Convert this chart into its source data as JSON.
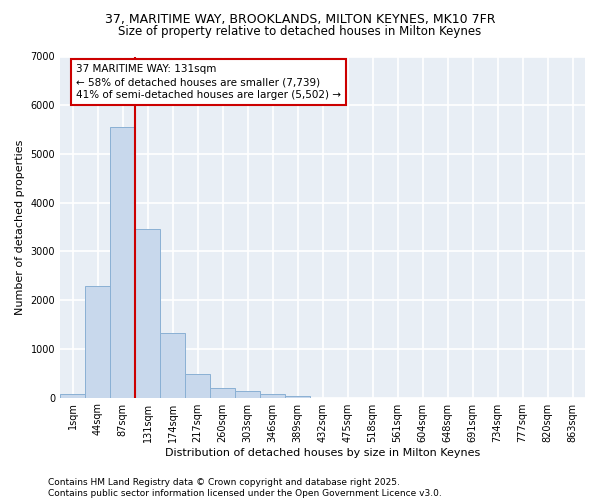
{
  "title_line1": "37, MARITIME WAY, BROOKLANDS, MILTON KEYNES, MK10 7FR",
  "title_line2": "Size of property relative to detached houses in Milton Keynes",
  "xlabel": "Distribution of detached houses by size in Milton Keynes",
  "ylabel": "Number of detached properties",
  "bar_categories": [
    "1sqm",
    "44sqm",
    "87sqm",
    "131sqm",
    "174sqm",
    "217sqm",
    "260sqm",
    "303sqm",
    "346sqm",
    "389sqm",
    "432sqm",
    "475sqm",
    "518sqm",
    "561sqm",
    "604sqm",
    "648sqm",
    "691sqm",
    "734sqm",
    "777sqm",
    "820sqm",
    "863sqm"
  ],
  "bar_values": [
    70,
    2300,
    5550,
    3450,
    1330,
    475,
    200,
    130,
    75,
    40,
    0,
    0,
    0,
    0,
    0,
    0,
    0,
    0,
    0,
    0,
    0
  ],
  "bar_color": "#c8d8ec",
  "bar_edge_color": "#8ab0d4",
  "vline_color": "#cc0000",
  "annotation_text": "37 MARITIME WAY: 131sqm\n← 58% of detached houses are smaller (7,739)\n41% of semi-detached houses are larger (5,502) →",
  "annotation_box_color": "white",
  "annotation_box_edge_color": "#cc0000",
  "ylim": [
    0,
    7000
  ],
  "yticks": [
    0,
    1000,
    2000,
    3000,
    4000,
    5000,
    6000,
    7000
  ],
  "footer_line1": "Contains HM Land Registry data © Crown copyright and database right 2025.",
  "footer_line2": "Contains public sector information licensed under the Open Government Licence v3.0.",
  "background_color": "#ffffff",
  "plot_bg_color": "#e8eef5",
  "grid_color": "white",
  "title_fontsize": 9,
  "subtitle_fontsize": 8.5,
  "axis_label_fontsize": 8,
  "tick_fontsize": 7,
  "annotation_fontsize": 7.5,
  "footer_fontsize": 6.5
}
